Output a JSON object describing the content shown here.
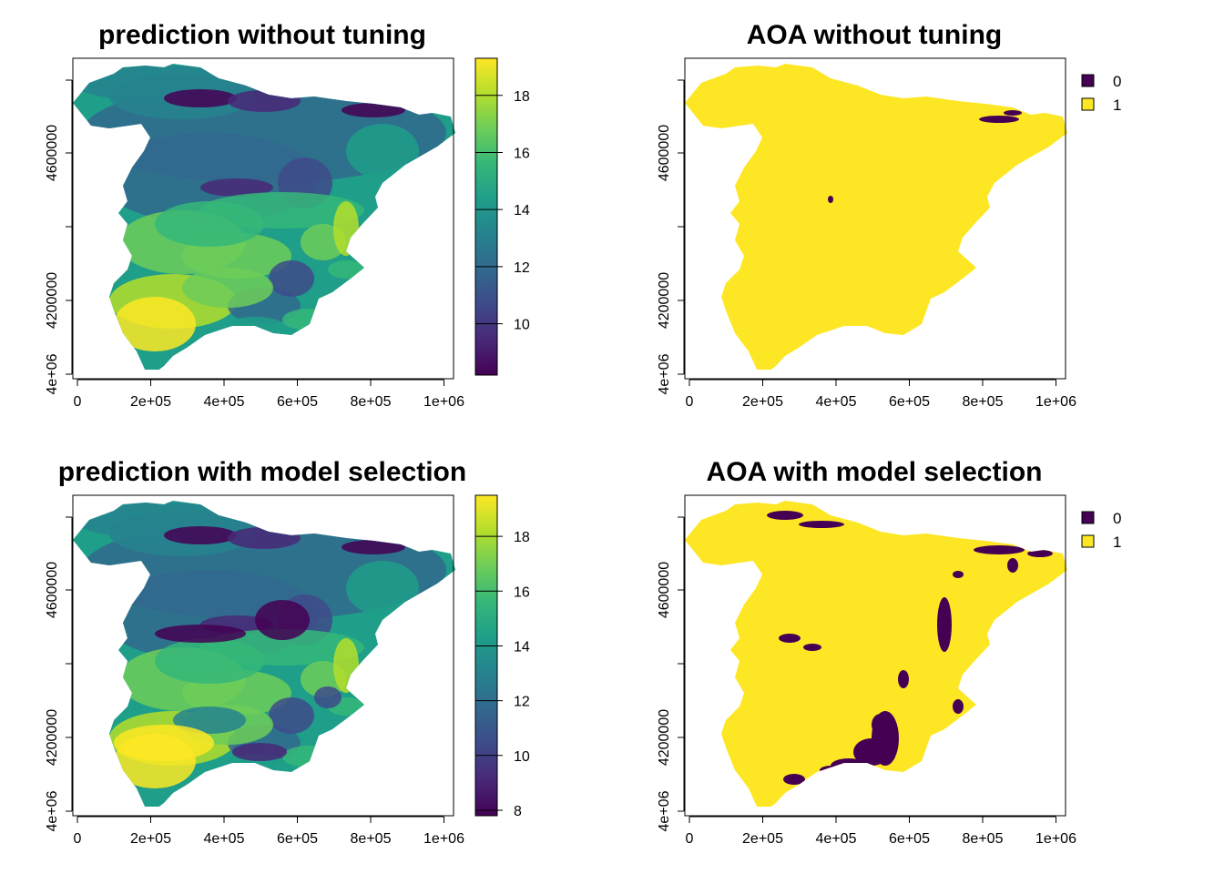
{
  "panels": [
    {
      "id": "pred1",
      "title": "prediction without tuning",
      "kind": "continuous",
      "colorbar": {
        "ticks": [
          10,
          12,
          14,
          16,
          18
        ],
        "range": [
          8.2,
          19.3
        ]
      }
    },
    {
      "id": "aoa1",
      "title": "AOA without tuning",
      "kind": "categorical",
      "legend": [
        {
          "label": "0",
          "color": "#440154"
        },
        {
          "label": "1",
          "color": "#FDE725"
        }
      ]
    },
    {
      "id": "pred2",
      "title": "prediction with model selection",
      "kind": "continuous",
      "colorbar": {
        "ticks": [
          8,
          10,
          12,
          14,
          16,
          18
        ],
        "range": [
          7.8,
          19.5
        ]
      }
    },
    {
      "id": "aoa2",
      "title": "AOA with model selection",
      "kind": "categorical",
      "legend": [
        {
          "label": "0",
          "color": "#440154"
        },
        {
          "label": "1",
          "color": "#FDE725"
        }
      ]
    }
  ],
  "axes": {
    "x_ticks": [
      "0",
      "2e+05",
      "4e+05",
      "6e+05",
      "8e+05",
      "1e+06"
    ],
    "y_ticks": [
      "4e+06",
      "4200000",
      "4600000"
    ]
  },
  "viridis": [
    "#440154",
    "#482878",
    "#3E4A89",
    "#31688E",
    "#26828E",
    "#1F9E89",
    "#35B779",
    "#6DCD59",
    "#B4DE2C",
    "#FDE725"
  ]
}
